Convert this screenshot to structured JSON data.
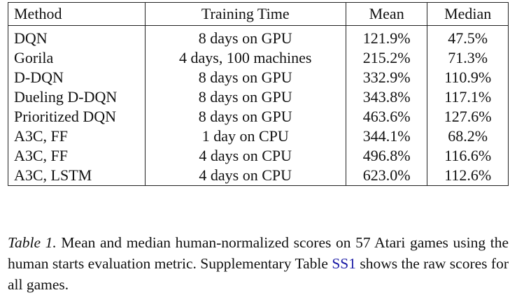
{
  "table": {
    "headers": {
      "method": "Method",
      "training_time": "Training Time",
      "mean": "Mean",
      "median": "Median"
    },
    "rows": [
      {
        "method": "DQN",
        "training_time": "8 days on GPU",
        "mean": "121.9%",
        "median": "47.5%"
      },
      {
        "method": "Gorila",
        "training_time": "4 days, 100 machines",
        "mean": "215.2%",
        "median": "71.3%"
      },
      {
        "method": "D-DQN",
        "training_time": "8 days on GPU",
        "mean": "332.9%",
        "median": "110.9%"
      },
      {
        "method": "Dueling D-DQN",
        "training_time": "8 days on GPU",
        "mean": "343.8%",
        "median": "117.1%"
      },
      {
        "method": "Prioritized DQN",
        "training_time": "8 days on GPU",
        "mean": "463.6%",
        "median": "127.6%"
      },
      {
        "method": "A3C, FF",
        "training_time": "1 day on CPU",
        "mean": "344.1%",
        "median": "68.2%"
      },
      {
        "method": "A3C, FF",
        "training_time": "4 days on CPU",
        "mean": "496.8%",
        "median": "116.6%"
      },
      {
        "method": "A3C, LSTM",
        "training_time": "4 days on CPU",
        "mean": "623.0%",
        "median": "112.6%"
      }
    ]
  },
  "caption": {
    "label": "Table 1.",
    "text_before_link": " Mean and median human-normalized scores on 57 Atari games using the human starts evaluation metric. Supplementary Table ",
    "link_text": "SS1",
    "text_after_link": " shows the raw scores for all games.",
    "link_color": "#1a1aa6"
  }
}
